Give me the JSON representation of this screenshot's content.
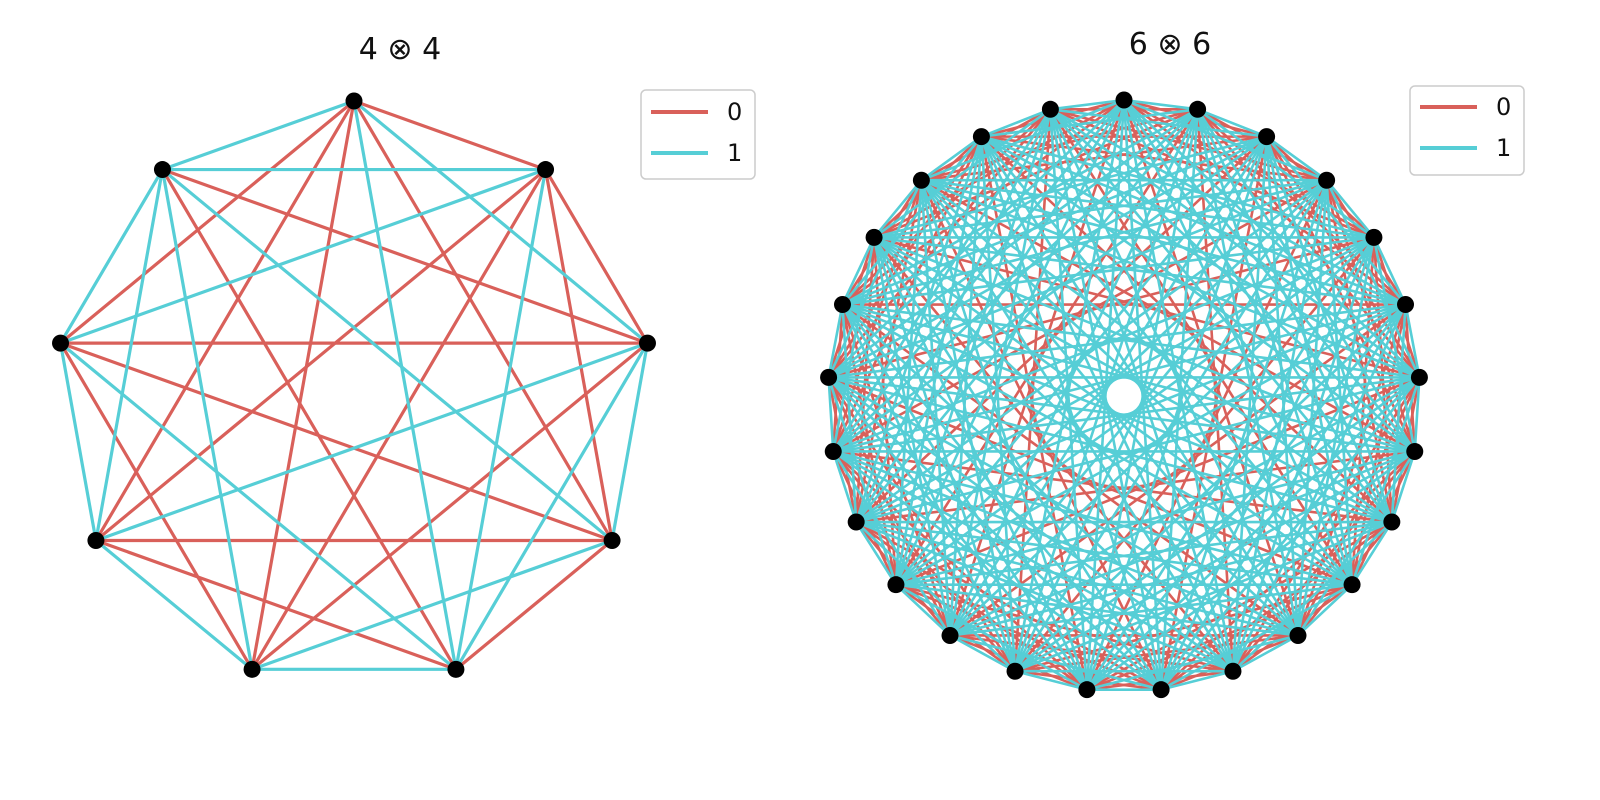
{
  "colors": {
    "edge_0": "#d9605a",
    "edge_1": "#56ced6",
    "node": "#000000"
  },
  "legend_labels": [
    "0",
    "1"
  ],
  "graphs": [
    {
      "title": "4 ⊗ 4",
      "node_count": 9,
      "edges_0": [
        [
          0,
          1
        ],
        [
          0,
          3
        ],
        [
          0,
          5
        ],
        [
          0,
          6
        ],
        [
          0,
          7
        ],
        [
          1,
          2
        ],
        [
          1,
          3
        ],
        [
          1,
          5
        ],
        [
          1,
          6
        ],
        [
          2,
          5
        ],
        [
          2,
          7
        ],
        [
          2,
          8
        ],
        [
          3,
          4
        ],
        [
          3,
          6
        ],
        [
          3,
          7
        ],
        [
          4,
          6
        ],
        [
          4,
          8
        ],
        [
          5,
          7
        ]
      ],
      "edges_1": [
        [
          0,
          2
        ],
        [
          0,
          4
        ],
        [
          0,
          8
        ],
        [
          1,
          4
        ],
        [
          1,
          7
        ],
        [
          1,
          8
        ],
        [
          2,
          3
        ],
        [
          2,
          4
        ],
        [
          2,
          6
        ],
        [
          3,
          5
        ],
        [
          3,
          8
        ],
        [
          4,
          5
        ],
        [
          4,
          7
        ],
        [
          5,
          6
        ],
        [
          5,
          8
        ],
        [
          6,
          7
        ],
        [
          6,
          8
        ],
        [
          7,
          8
        ]
      ]
    },
    {
      "title": "6 ⊗ 6",
      "node_count": 25,
      "edges_0": [],
      "edges_1": []
    }
  ]
}
